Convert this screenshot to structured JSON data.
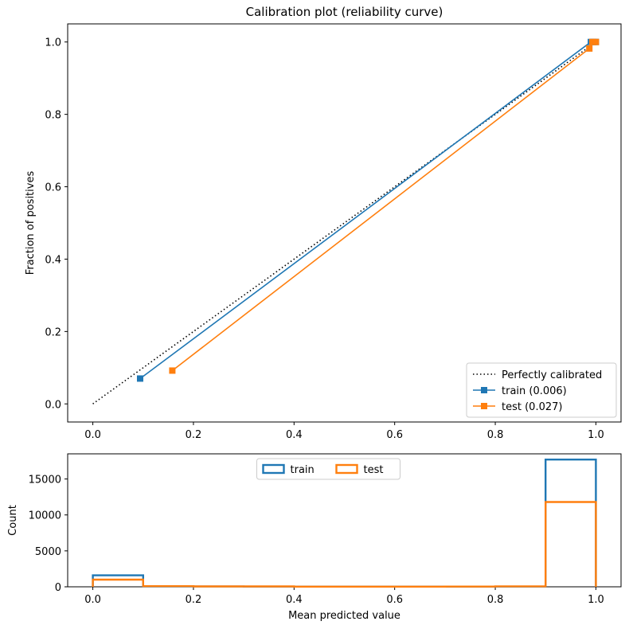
{
  "chart_data": [
    {
      "type": "line",
      "title": "Calibration plot (reliability curve)",
      "xlabel": "",
      "ylabel": "Fraction of positives",
      "xlim": [
        -0.05,
        1.05
      ],
      "ylim": [
        -0.05,
        1.05
      ],
      "xticks": [
        "0.0",
        "0.2",
        "0.4",
        "0.6",
        "0.8",
        "1.0"
      ],
      "yticks": [
        "0.0",
        "0.2",
        "0.4",
        "0.6",
        "0.8",
        "1.0"
      ],
      "grid": false,
      "legend_position": "lower-right",
      "reference": {
        "name": "Perfectly calibrated",
        "x": [
          0,
          1
        ],
        "y": [
          0,
          1
        ],
        "style": "dotted",
        "color": "#000000"
      },
      "series": [
        {
          "name": "train (0.006)",
          "color": "#1f77b4",
          "marker": "square",
          "x": [
            0.094,
            0.99,
            0.995,
            1.0
          ],
          "y": [
            0.07,
            1.0,
            1.0,
            1.0
          ]
        },
        {
          "name": "test (0.027)",
          "color": "#ff7f0e",
          "marker": "square",
          "x": [
            0.158,
            0.987,
            0.993,
            1.0
          ],
          "y": [
            0.092,
            0.982,
            1.0,
            1.0
          ]
        }
      ]
    },
    {
      "type": "histogram",
      "title": "",
      "xlabel": "Mean predicted value",
      "ylabel": "Count",
      "xlim": [
        -0.05,
        1.05
      ],
      "ylim": [
        0,
        18500
      ],
      "xticks": [
        "0.0",
        "0.2",
        "0.4",
        "0.6",
        "0.8",
        "1.0"
      ],
      "yticks": [
        "0",
        "5000",
        "10000",
        "15000"
      ],
      "grid": false,
      "legend_position": "top-center",
      "bin_edges": [
        0.0,
        0.1,
        0.2,
        0.3,
        0.4,
        0.5,
        0.6,
        0.7,
        0.8,
        0.9,
        1.0
      ],
      "series": [
        {
          "name": "train",
          "color": "#1f77b4",
          "counts": [
            1600,
            60,
            40,
            30,
            20,
            20,
            20,
            20,
            30,
            17700
          ]
        },
        {
          "name": "test",
          "color": "#ff7f0e",
          "counts": [
            1000,
            90,
            60,
            50,
            20,
            20,
            20,
            30,
            70,
            11800
          ]
        }
      ]
    }
  ]
}
